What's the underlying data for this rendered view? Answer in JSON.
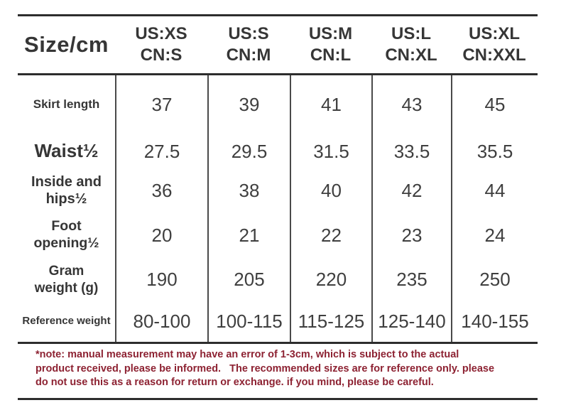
{
  "chart_data": {
    "type": "table",
    "title": "Size/cm",
    "columns": [
      "US:XS / CN:S",
      "US:S / CN:M",
      "US:M / CN:L",
      "US:L / CN:XL",
      "US:XL / CN:XXL"
    ],
    "row_labels": [
      "Skirt length",
      "Waist½",
      "Inside and hips½",
      "Foot opening½",
      "Gram weight (g)",
      "Reference weight"
    ],
    "values": [
      [
        37,
        39,
        41,
        43,
        45
      ],
      [
        27.5,
        29.5,
        31.5,
        33.5,
        35.5
      ],
      [
        36,
        38,
        40,
        42,
        44
      ],
      [
        20,
        21,
        22,
        23,
        24
      ],
      [
        190,
        205,
        220,
        235,
        250
      ],
      [
        "80-100",
        "100-115",
        "115-125",
        "125-140",
        "140-155"
      ]
    ]
  },
  "table": {
    "corner_label": "Size/cm",
    "size_columns": [
      {
        "us": "US:XS",
        "cn": "CN:S"
      },
      {
        "us": "US:S",
        "cn": "CN:M"
      },
      {
        "us": "US:M",
        "cn": "CN:L"
      },
      {
        "us": "US:L",
        "cn": "CN:XL"
      },
      {
        "us": "US:XL",
        "cn": "CN:XXL"
      }
    ],
    "rows": [
      {
        "label": "Skirt length",
        "values": [
          "37",
          "39",
          "41",
          "43",
          "45"
        ]
      },
      {
        "label": "Waist½",
        "values": [
          "27.5",
          "29.5",
          "31.5",
          "33.5",
          "35.5"
        ]
      },
      {
        "label": "Inside and\nhips½",
        "values": [
          "36",
          "38",
          "40",
          "42",
          "44"
        ]
      },
      {
        "label": "Foot\nopening½",
        "values": [
          "20",
          "21",
          "22",
          "23",
          "24"
        ]
      },
      {
        "label": "Gram\nweight (g)",
        "values": [
          "190",
          "205",
          "220",
          "235",
          "250"
        ]
      },
      {
        "label": "Reference weight",
        "values": [
          "80-100",
          "100-115",
          "115-125",
          "125-140",
          "140-155"
        ]
      }
    ]
  },
  "note": {
    "text": "*note: manual measurement may have an error of 1-3cm, which is subject to the actual\nproduct received, please be informed.   The recommended sizes are for reference only. please\ndo not use this as a reason for return or exchange. if you mind, please be careful."
  },
  "colors": {
    "text_dark": "#363636",
    "value_text": "#3f3f3f",
    "border_dark": "#2d2d2d",
    "separator": "#4a4a4a",
    "note_red": "#8d2232"
  }
}
